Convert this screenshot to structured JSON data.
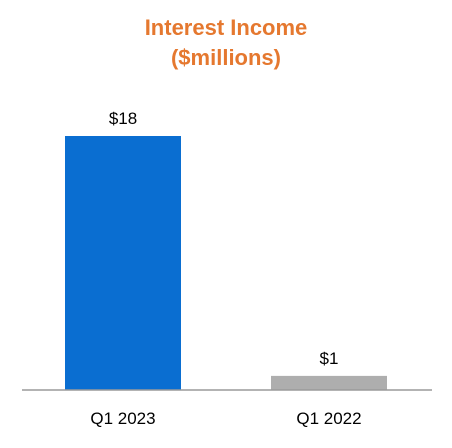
{
  "chart_data": {
    "type": "bar",
    "title_line1": "Interest Income",
    "title_line2": "($millions)",
    "title_color": "#E5782F",
    "categories": [
      "Q1 2023",
      "Q1 2022"
    ],
    "values": [
      18,
      1
    ],
    "data_labels": [
      "$18",
      "$1"
    ],
    "bar_colors": [
      "#0A6ED1",
      "#AEAEAE"
    ],
    "xlabel": "",
    "ylabel": "",
    "ylim": [
      0,
      18
    ],
    "grid": false,
    "legend": "none"
  }
}
